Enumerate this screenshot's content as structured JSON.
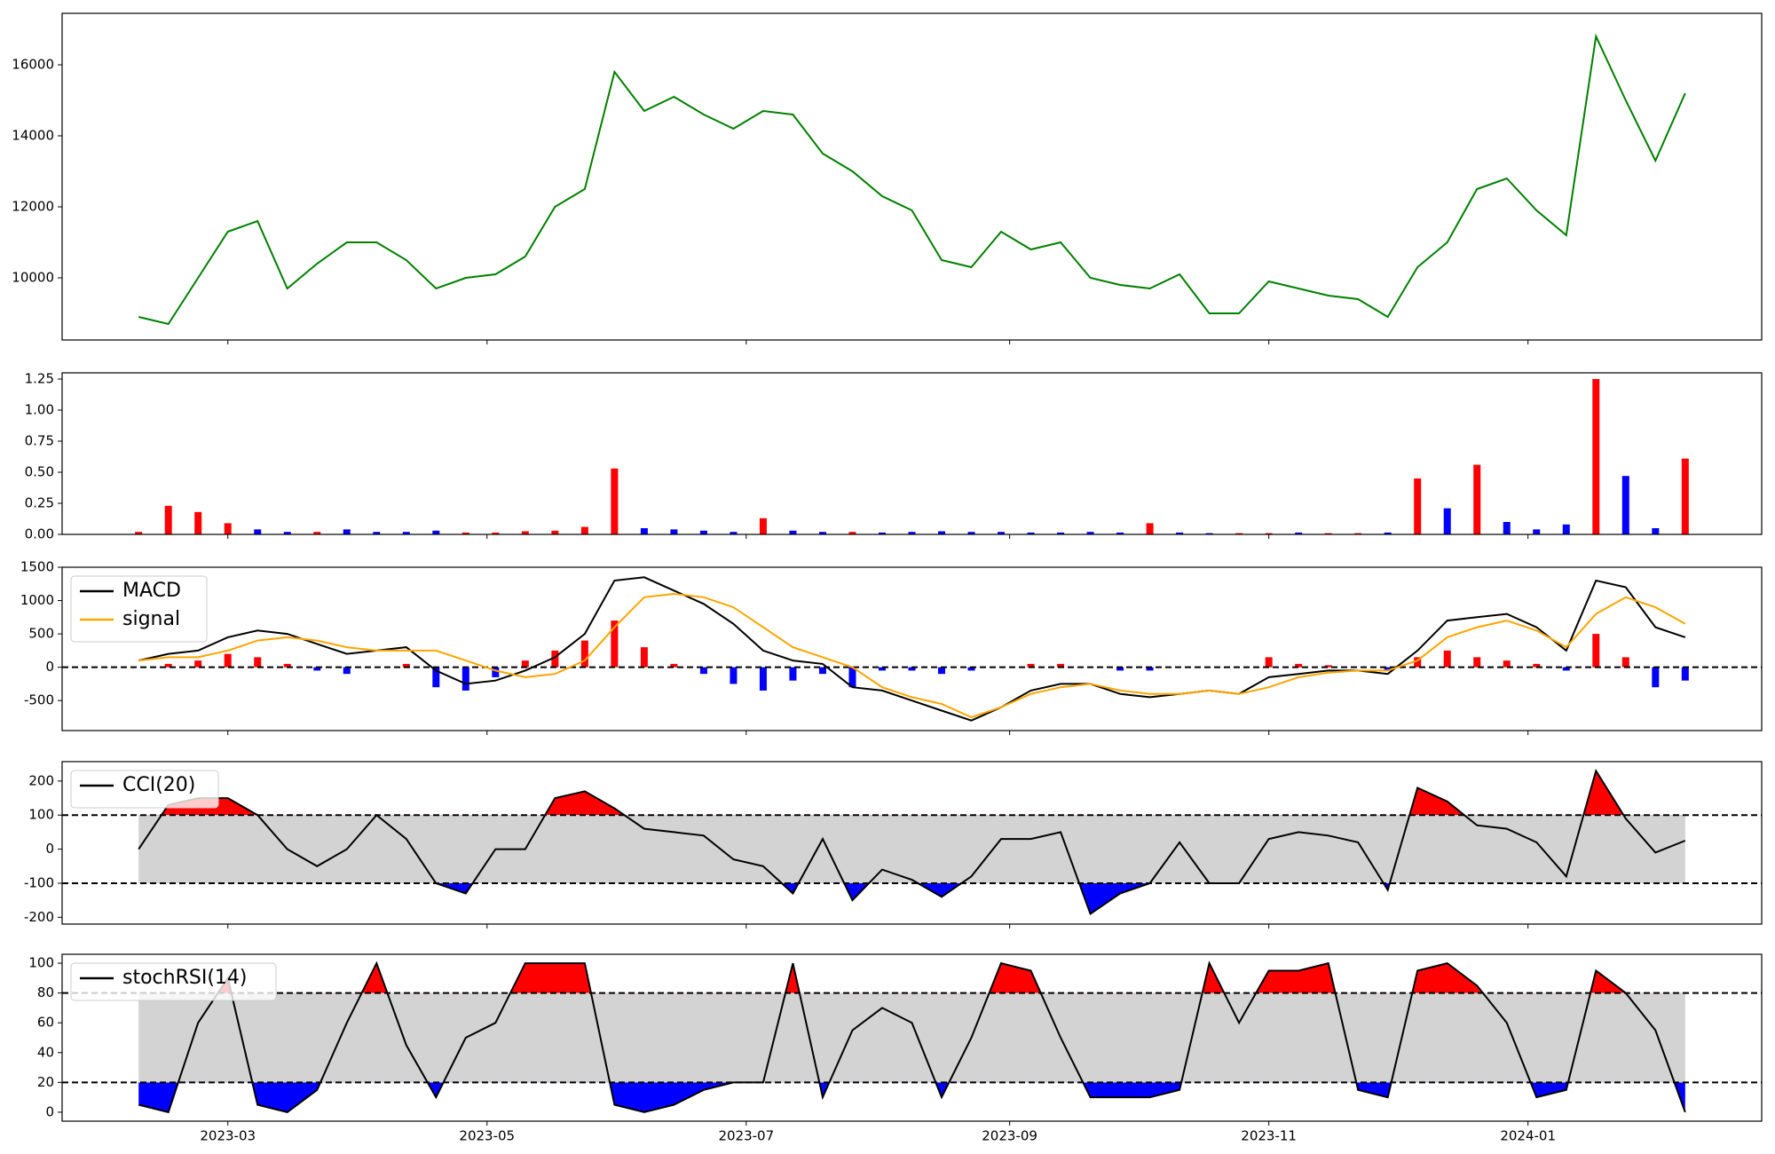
{
  "x_axis": {
    "x": [
      "2023-02-08",
      "2023-02-15",
      "2023-02-22",
      "2023-03-01",
      "2023-03-08",
      "2023-03-15",
      "2023-03-22",
      "2023-03-29",
      "2023-04-05",
      "2023-04-12",
      "2023-04-19",
      "2023-04-26",
      "2023-05-03",
      "2023-05-10",
      "2023-05-17",
      "2023-05-24",
      "2023-05-31",
      "2023-06-07",
      "2023-06-14",
      "2023-06-21",
      "2023-06-28",
      "2023-07-05",
      "2023-07-12",
      "2023-07-19",
      "2023-07-26",
      "2023-08-02",
      "2023-08-09",
      "2023-08-16",
      "2023-08-23",
      "2023-08-30",
      "2023-09-06",
      "2023-09-13",
      "2023-09-20",
      "2023-09-27",
      "2023-10-04",
      "2023-10-11",
      "2023-10-18",
      "2023-10-25",
      "2023-11-01",
      "2023-11-08",
      "2023-11-15",
      "2023-11-22",
      "2023-11-29",
      "2023-12-06",
      "2023-12-13",
      "2023-12-20",
      "2023-12-27",
      "2024-01-03",
      "2024-01-10",
      "2024-01-17",
      "2024-01-24",
      "2024-01-31",
      "2024-02-07"
    ],
    "xlim": [
      "2023-01-21",
      "2024-02-25"
    ],
    "xticks": [
      {
        "value": "2023-03-01",
        "label": "2023-03"
      },
      {
        "value": "2023-05-01",
        "label": "2023-05"
      },
      {
        "value": "2023-07-01",
        "label": "2023-07"
      },
      {
        "value": "2023-09-01",
        "label": "2023-09"
      },
      {
        "value": "2023-11-01",
        "label": "2023-11"
      },
      {
        "value": "2024-01-01",
        "label": "2024-01"
      }
    ]
  },
  "chart_data": [
    {
      "type": "line",
      "ylim": [
        8250,
        17450
      ],
      "yticks": [
        10000,
        12000,
        14000,
        16000
      ],
      "series": [
        {
          "color": "#008000",
          "values": [
            8900,
            8700,
            10000,
            11300,
            11600,
            9700,
            10400,
            11000,
            11000,
            10500,
            9700,
            10000,
            10100,
            10600,
            12000,
            12500,
            15800,
            14700,
            15100,
            14600,
            14200,
            14700,
            14600,
            13500,
            13000,
            12300,
            11900,
            10500,
            10300,
            11300,
            10800,
            11000,
            10000,
            9800,
            9700,
            10100,
            9000,
            9000,
            9900,
            9700,
            9500,
            9400,
            8900,
            10300,
            11000,
            12500,
            12800,
            11900,
            11200,
            16800,
            15000,
            13300,
            15200
          ]
        }
      ]
    },
    {
      "type": "bar",
      "ylim": [
        0,
        13000000
      ],
      "offset_label": "1e7",
      "yticks": [
        {
          "value": 0,
          "label": "0.00"
        },
        {
          "value": 2500000,
          "label": "0.25"
        },
        {
          "value": 5000000,
          "label": "0.50"
        },
        {
          "value": 7500000,
          "label": "0.75"
        },
        {
          "value": 10000000,
          "label": "1.00"
        },
        {
          "value": 12500000,
          "label": "1.25"
        }
      ],
      "values": [
        200000,
        2300000,
        1800000,
        900000,
        400000,
        200000,
        200000,
        400000,
        200000,
        200000,
        300000,
        150000,
        150000,
        250000,
        300000,
        600000,
        5300000,
        500000,
        400000,
        300000,
        200000,
        1300000,
        300000,
        200000,
        200000,
        150000,
        200000,
        250000,
        200000,
        200000,
        150000,
        150000,
        200000,
        150000,
        900000,
        150000,
        100000,
        100000,
        100000,
        150000,
        100000,
        100000,
        150000,
        4500000,
        2100000,
        5600000,
        1000000,
        400000,
        800000,
        12500000,
        4700000,
        500000,
        6100000
      ],
      "colors": [
        "red",
        "red",
        "red",
        "red",
        "blue",
        "blue",
        "red",
        "blue",
        "blue",
        "blue",
        "blue",
        "red",
        "red",
        "red",
        "red",
        "red",
        "red",
        "blue",
        "blue",
        "blue",
        "blue",
        "red",
        "blue",
        "blue",
        "red",
        "blue",
        "blue",
        "blue",
        "blue",
        "blue",
        "blue",
        "blue",
        "blue",
        "blue",
        "red",
        "blue",
        "blue",
        "red",
        "red",
        "blue",
        "red",
        "red",
        "blue",
        "red",
        "blue",
        "red",
        "blue",
        "blue",
        "blue",
        "red",
        "blue",
        "blue",
        "red"
      ]
    },
    {
      "type": "macd",
      "ylim": [
        -950,
        1500
      ],
      "yticks": [
        -500,
        0,
        500,
        1000,
        1500
      ],
      "levels": [
        0
      ],
      "legend": "upper left",
      "series": [
        {
          "name": "MACD",
          "color": "#000000",
          "values": [
            100,
            200,
            250,
            450,
            550,
            500,
            350,
            200,
            250,
            300,
            -50,
            -250,
            -200,
            -50,
            150,
            500,
            1300,
            1350,
            1150,
            950,
            650,
            250,
            100,
            50,
            -300,
            -350,
            -500,
            -650,
            -800,
            -600,
            -350,
            -250,
            -250,
            -400,
            -450,
            -400,
            -350,
            -400,
            -150,
            -100,
            -50,
            -50,
            -100,
            250,
            700,
            750,
            800,
            600,
            250,
            1300,
            1200,
            600,
            450
          ]
        },
        {
          "name": "signal",
          "color": "#ffa500",
          "values": [
            100,
            150,
            150,
            250,
            400,
            450,
            400,
            300,
            250,
            250,
            250,
            100,
            -50,
            -150,
            -100,
            100,
            600,
            1050,
            1100,
            1050,
            900,
            600,
            300,
            150,
            0,
            -300,
            -450,
            -550,
            -750,
            -600,
            -400,
            -300,
            -250,
            -350,
            -400,
            -400,
            -350,
            -400,
            -300,
            -150,
            -80,
            -50,
            -50,
            100,
            450,
            600,
            700,
            550,
            300,
            800,
            1050,
            900,
            650
          ]
        }
      ],
      "histogram": {
        "pos_color": "red",
        "neg_color": "blue",
        "values": [
          0,
          50,
          100,
          200,
          150,
          50,
          -50,
          -100,
          0,
          50,
          -300,
          -350,
          -150,
          100,
          250,
          400,
          700,
          300,
          50,
          -100,
          -250,
          -350,
          -200,
          -100,
          -300,
          -50,
          -50,
          -100,
          -50,
          0,
          50,
          50,
          0,
          -50,
          -50,
          0,
          0,
          0,
          150,
          50,
          30,
          0,
          -50,
          150,
          250,
          150,
          100,
          50,
          -50,
          500,
          150,
          -300,
          -200
        ]
      }
    },
    {
      "type": "oscillator",
      "ylim": [
        -220,
        257
      ],
      "yticks": [
        -200,
        -100,
        0,
        100,
        200
      ],
      "levels": [
        100,
        -100
      ],
      "legend": "upper left",
      "above_color": "red",
      "below_color": "blue",
      "band_color": "#d3d3d3",
      "series": [
        {
          "name": "CCI(20)",
          "color": "#000000",
          "values": [
            0,
            130,
            150,
            150,
            100,
            0,
            -50,
            0,
            100,
            30,
            -100,
            -130,
            0,
            0,
            150,
            170,
            120,
            60,
            50,
            40,
            -30,
            -50,
            -130,
            30,
            -150,
            -60,
            -90,
            -140,
            -80,
            30,
            30,
            50,
            -190,
            -130,
            -100,
            20,
            -100,
            -100,
            30,
            50,
            40,
            20,
            -120,
            180,
            140,
            70,
            60,
            20,
            -80,
            230,
            90,
            -10,
            25
          ]
        }
      ]
    },
    {
      "type": "oscillator",
      "ylim": [
        -6,
        106
      ],
      "yticks": [
        0,
        20,
        40,
        60,
        80,
        100
      ],
      "levels": [
        80,
        20
      ],
      "legend": "upper left",
      "above_color": "red",
      "below_color": "blue",
      "band_color": "#d3d3d3",
      "series": [
        {
          "name": "stochRSI(14)",
          "color": "#000000",
          "values": [
            5,
            0,
            60,
            90,
            5,
            0,
            15,
            60,
            100,
            45,
            10,
            50,
            60,
            100,
            100,
            100,
            5,
            0,
            5,
            15,
            20,
            20,
            100,
            10,
            55,
            70,
            60,
            10,
            50,
            100,
            95,
            50,
            10,
            10,
            10,
            15,
            100,
            60,
            95,
            95,
            100,
            15,
            10,
            95,
            100,
            85,
            60,
            10,
            15,
            95,
            80,
            55,
            0
          ]
        }
      ]
    }
  ]
}
